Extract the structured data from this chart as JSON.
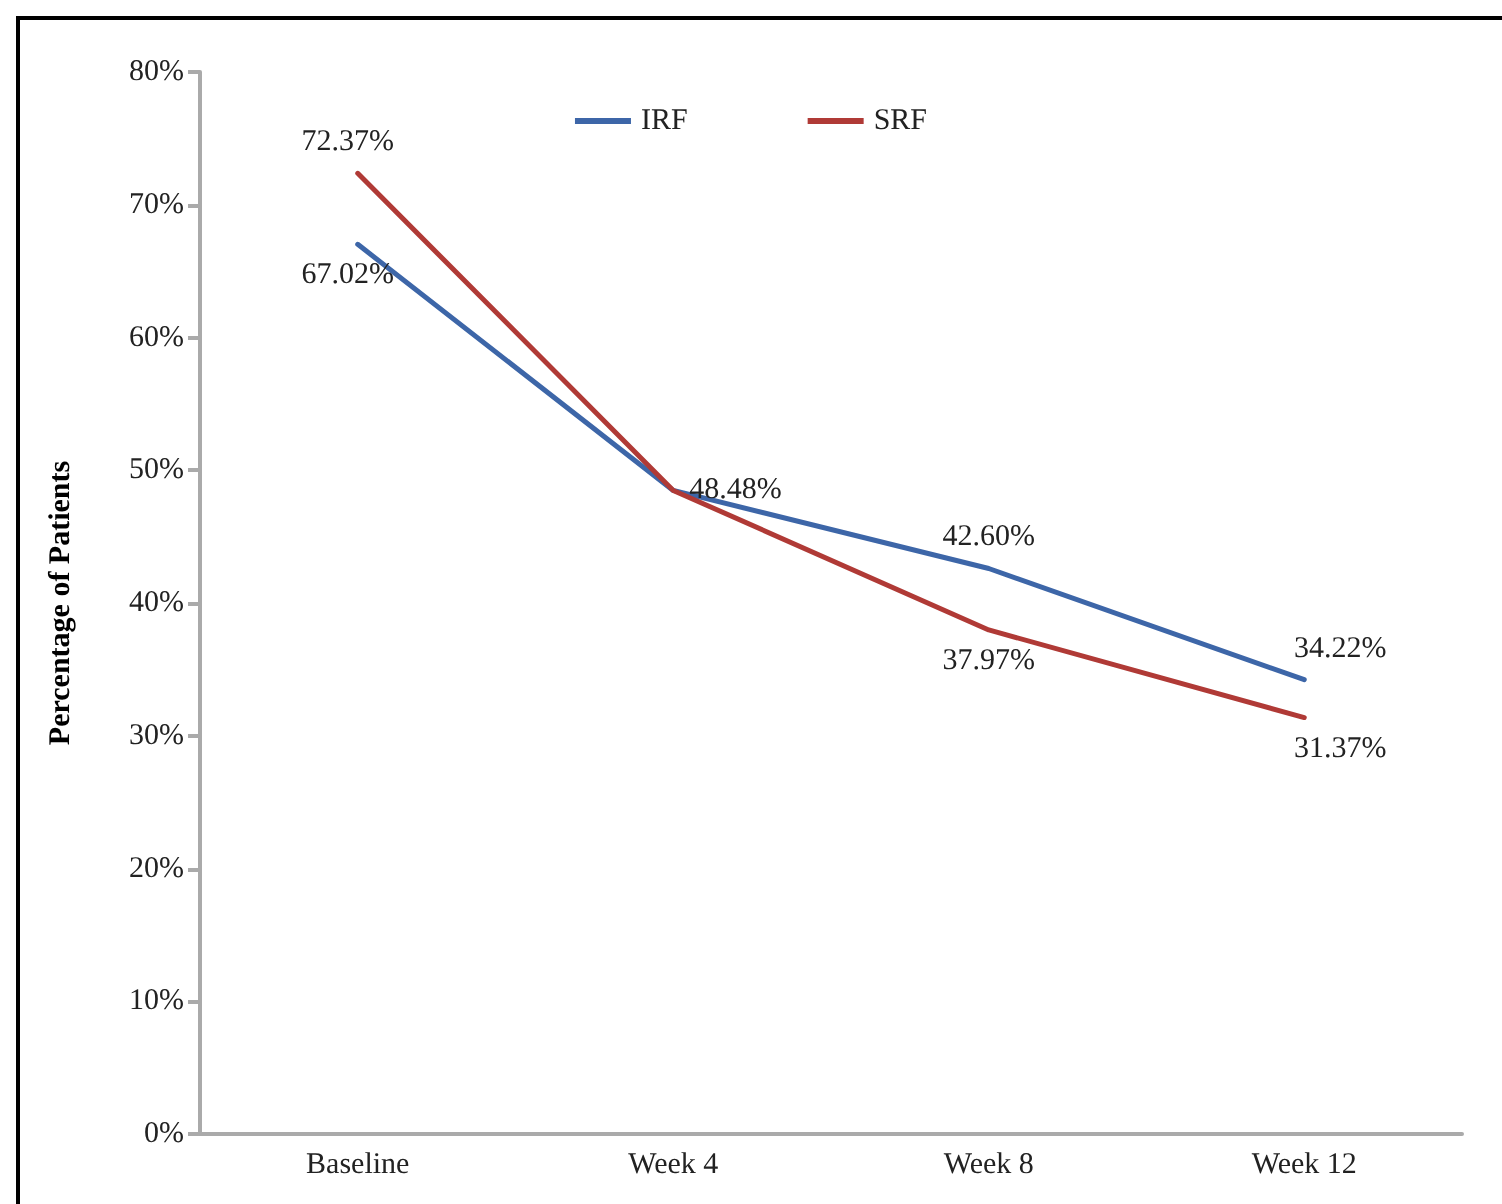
{
  "chart_data": {
    "type": "line",
    "ylabel": "Percentage of Patients",
    "categories": [
      "Baseline",
      "Week 4",
      "Week 8",
      "Week 12"
    ],
    "series": [
      {
        "name": "IRF",
        "color": "#3d66a8",
        "values": [
          67.02,
          48.48,
          42.6,
          34.22
        ],
        "value_labels": [
          "67.02%",
          "48.48%",
          "42.60%",
          "34.22%"
        ]
      },
      {
        "name": "SRF",
        "color": "#b03a36",
        "values": [
          72.37,
          48.48,
          37.97,
          31.37
        ],
        "value_labels": [
          "72.37%",
          null,
          "37.97%",
          "31.37%"
        ]
      }
    ],
    "ylim": [
      0,
      80
    ],
    "yticks": [
      {
        "value": 0,
        "label": "0%"
      },
      {
        "value": 10,
        "label": "10%"
      },
      {
        "value": 20,
        "label": "20%"
      },
      {
        "value": 30,
        "label": "30%"
      },
      {
        "value": 40,
        "label": "40%"
      },
      {
        "value": 50,
        "label": "50%"
      },
      {
        "value": 60,
        "label": "60%"
      },
      {
        "value": 70,
        "label": "70%"
      },
      {
        "value": 80,
        "label": "80%"
      }
    ],
    "grid": false,
    "legend": "top",
    "marker": "none",
    "line_style": "solid"
  }
}
